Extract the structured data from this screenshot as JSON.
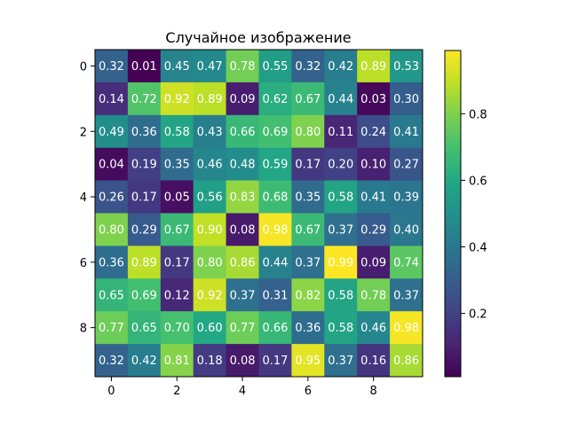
{
  "chart_data": {
    "type": "heatmap",
    "title": "Случайное изображение",
    "xlabel": "",
    "ylabel": "",
    "colormap": "viridis",
    "rows": 10,
    "cols": 10,
    "values": [
      [
        0.32,
        0.01,
        0.45,
        0.47,
        0.78,
        0.55,
        0.32,
        0.42,
        0.89,
        0.53
      ],
      [
        0.14,
        0.72,
        0.92,
        0.89,
        0.09,
        0.62,
        0.67,
        0.44,
        0.03,
        0.3
      ],
      [
        0.49,
        0.36,
        0.58,
        0.43,
        0.66,
        0.69,
        0.8,
        0.11,
        0.24,
        0.41
      ],
      [
        0.04,
        0.19,
        0.35,
        0.46,
        0.48,
        0.59,
        0.17,
        0.2,
        0.1,
        0.27
      ],
      [
        0.26,
        0.17,
        0.05,
        0.56,
        0.83,
        0.68,
        0.35,
        0.58,
        0.41,
        0.39
      ],
      [
        0.8,
        0.29,
        0.67,
        0.9,
        0.08,
        0.98,
        0.67,
        0.37,
        0.29,
        0.4
      ],
      [
        0.36,
        0.89,
        0.17,
        0.8,
        0.86,
        0.44,
        0.37,
        0.99,
        0.09,
        0.74
      ],
      [
        0.65,
        0.69,
        0.12,
        0.92,
        0.37,
        0.31,
        0.82,
        0.58,
        0.78,
        0.37
      ],
      [
        0.77,
        0.65,
        0.7,
        0.6,
        0.77,
        0.66,
        0.36,
        0.58,
        0.46,
        0.98
      ],
      [
        0.32,
        0.42,
        0.81,
        0.18,
        0.08,
        0.17,
        0.95,
        0.37,
        0.16,
        0.86
      ]
    ],
    "x_ticks": [
      "0",
      "2",
      "4",
      "6",
      "8"
    ],
    "y_ticks": [
      "0",
      "2",
      "4",
      "6",
      "8"
    ],
    "colorbar": {
      "range": [
        0.01,
        0.99
      ],
      "ticks": [
        0.2,
        0.4,
        0.6,
        0.8
      ],
      "tick_labels": [
        "0.2",
        "0.4",
        "0.6",
        "0.8"
      ]
    },
    "grid": false,
    "legend": "none",
    "cell_label_color": "#ffffff"
  }
}
